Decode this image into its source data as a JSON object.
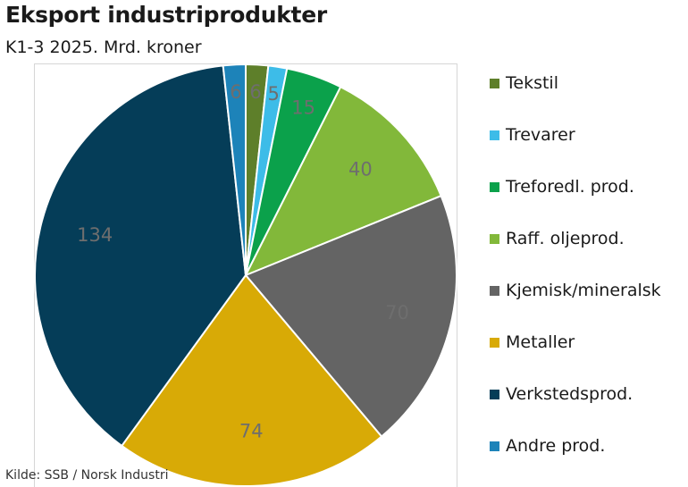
{
  "header": {
    "title": "Eksport industriprodukter",
    "subtitle": "K1-3 2025. Mrd. kroner"
  },
  "source": "Kilde: SSB / Norsk Industri",
  "chart_data": {
    "type": "pie",
    "start_angle_deg": 0,
    "direction": "clockwise",
    "legend_position": "right",
    "slices": [
      {
        "name": "Tekstil",
        "value": 6,
        "label": "6",
        "color": "#5e7f2a"
      },
      {
        "name": "Trevarer",
        "value": 5,
        "label": "5",
        "color": "#3dbce8"
      },
      {
        "name": "Treforedl. prod.",
        "value": 15,
        "label": "15",
        "color": "#0ba14b"
      },
      {
        "name": "Raff. oljeprod.",
        "value": 40,
        "label": "40",
        "color": "#82b83a"
      },
      {
        "name": "Kjemisk/mineralsk",
        "value": 70,
        "label": "70",
        "color": "#646464"
      },
      {
        "name": "Metaller",
        "value": 74,
        "label": "74",
        "color": "#d8aa06"
      },
      {
        "name": "Verkstedsprod.",
        "value": 134,
        "label": "134",
        "color": "#053d58"
      },
      {
        "name": "Andre prod.",
        "value": 6,
        "label": "6",
        "color": "#1d83b9"
      }
    ]
  }
}
